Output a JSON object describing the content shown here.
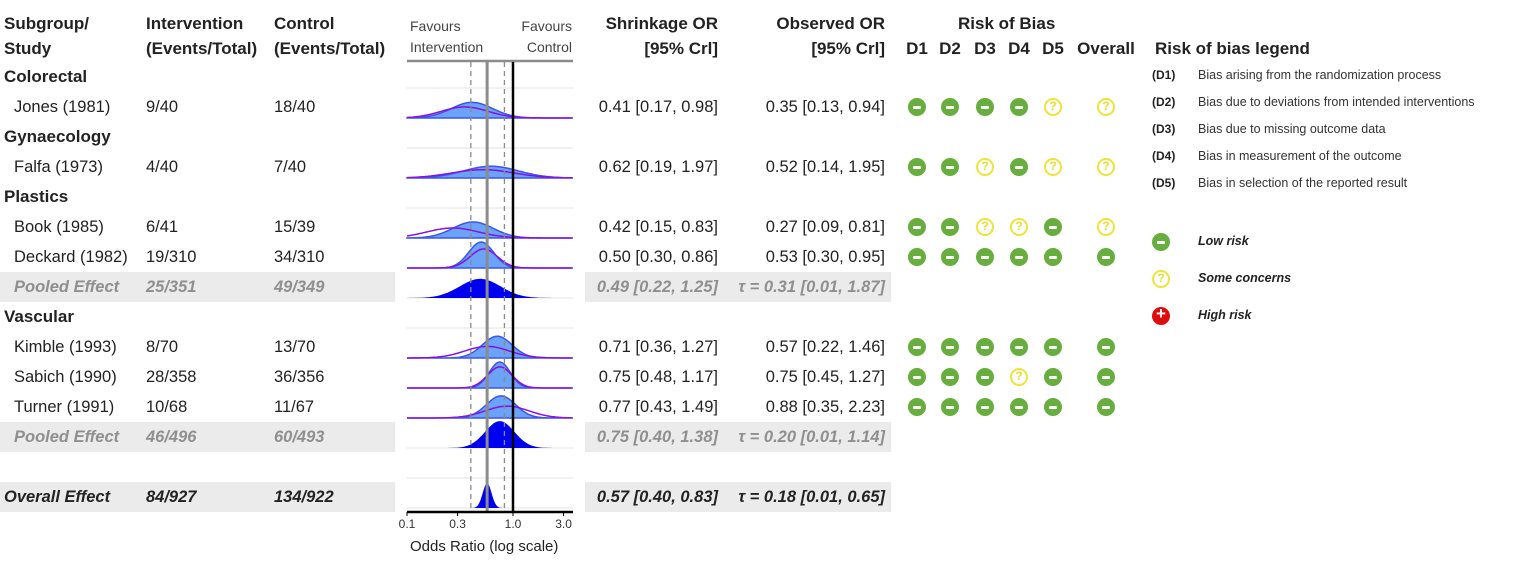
{
  "headers": {
    "study_line1": "Subgroup/",
    "study_line2": "Study",
    "intervention_line1": "Intervention",
    "intervention_line2": "(Events/Total)",
    "control_line1": "Control",
    "control_line2": "(Events/Total)",
    "favours_left_line1": "Favours",
    "favours_left_line2": "Intervention",
    "favours_right_line1": "Favours",
    "favours_right_line2": "Control",
    "shrinkage_line1": "Shrinkage OR",
    "shrinkage_line2": "[95% Crl]",
    "observed_line1": "Observed OR",
    "observed_line2": "[95% Crl]",
    "rob_title": "Risk of Bias",
    "rob_domains": [
      "D1",
      "D2",
      "D3",
      "D4",
      "D5",
      "Overall"
    ]
  },
  "rows": [
    {
      "type": "group",
      "label": "Colorectal"
    },
    {
      "type": "study",
      "label": "Jones (1981)",
      "intervention": "9/40",
      "control": "18/40",
      "shrinkage": "0.41 [0.17, 0.98]",
      "observed": "0.35 [0.13, 0.94]",
      "rob": [
        "low",
        "low",
        "low",
        "low",
        "some",
        "some"
      ],
      "dist": {
        "shrink_or": 0.41,
        "shrink_lo": 0.17,
        "shrink_hi": 0.98,
        "obs_or": 0.35,
        "obs_lo": 0.13,
        "obs_hi": 0.94
      }
    },
    {
      "type": "group",
      "label": "Gynaecology"
    },
    {
      "type": "study",
      "label": "Falfa (1973)",
      "intervention": "4/40",
      "control": "7/40",
      "shrinkage": "0.62 [0.19, 1.97]",
      "observed": "0.52 [0.14, 1.95]",
      "rob": [
        "low",
        "low",
        "some",
        "low",
        "some",
        "some"
      ],
      "dist": {
        "shrink_or": 0.62,
        "shrink_lo": 0.19,
        "shrink_hi": 1.97,
        "obs_or": 0.52,
        "obs_lo": 0.14,
        "obs_hi": 1.95
      }
    },
    {
      "type": "group",
      "label": "Plastics"
    },
    {
      "type": "study",
      "label": "Book (1985)",
      "intervention": "6/41",
      "control": "15/39",
      "shrinkage": "0.42 [0.15, 0.83]",
      "observed": "0.27 [0.09, 0.81]",
      "rob": [
        "low",
        "low",
        "some",
        "some",
        "low",
        "some"
      ],
      "dist": {
        "shrink_or": 0.42,
        "shrink_lo": 0.15,
        "shrink_hi": 0.83,
        "obs_or": 0.27,
        "obs_lo": 0.09,
        "obs_hi": 0.81
      }
    },
    {
      "type": "study",
      "label": "Deckard (1982)",
      "intervention": "19/310",
      "control": "34/310",
      "shrinkage": "0.50 [0.30, 0.86]",
      "observed": "0.53 [0.30, 0.95]",
      "rob": [
        "low",
        "low",
        "low",
        "low",
        "low",
        "low"
      ],
      "dist": {
        "shrink_or": 0.5,
        "shrink_lo": 0.3,
        "shrink_hi": 0.86,
        "obs_or": 0.53,
        "obs_lo": 0.3,
        "obs_hi": 0.95
      }
    },
    {
      "type": "pooled",
      "label": "Pooled Effect",
      "intervention": "25/351",
      "control": "49/349",
      "shrinkage": "0.49 [0.22, 1.25]",
      "observed": "τ = 0.31 [0.01, 1.87]",
      "dist": {
        "shrink_or": 0.49,
        "shrink_lo": 0.22,
        "shrink_hi": 1.25
      }
    },
    {
      "type": "group",
      "label": "Vascular"
    },
    {
      "type": "study",
      "label": "Kimble (1993)",
      "intervention": "8/70",
      "control": "13/70",
      "shrinkage": "0.71 [0.36, 1.27]",
      "observed": "0.57 [0.22, 1.46]",
      "rob": [
        "low",
        "low",
        "low",
        "low",
        "low",
        "low"
      ],
      "dist": {
        "shrink_or": 0.71,
        "shrink_lo": 0.36,
        "shrink_hi": 1.27,
        "obs_or": 0.57,
        "obs_lo": 0.22,
        "obs_hi": 1.46
      }
    },
    {
      "type": "study",
      "label": "Sabich (1990)",
      "intervention": "28/358",
      "control": "36/356",
      "shrinkage": "0.75 [0.48, 1.17]",
      "observed": "0.75 [0.45, 1.27]",
      "rob": [
        "low",
        "low",
        "low",
        "some",
        "low",
        "low"
      ],
      "dist": {
        "shrink_or": 0.75,
        "shrink_lo": 0.48,
        "shrink_hi": 1.17,
        "obs_or": 0.75,
        "obs_lo": 0.45,
        "obs_hi": 1.27
      }
    },
    {
      "type": "study",
      "label": "Turner (1991)",
      "intervention": "10/68",
      "control": "11/67",
      "shrinkage": "0.77 [0.43, 1.49]",
      "observed": "0.88 [0.35, 2.23]",
      "rob": [
        "low",
        "low",
        "low",
        "low",
        "low",
        "low"
      ],
      "dist": {
        "shrink_or": 0.77,
        "shrink_lo": 0.43,
        "shrink_hi": 1.49,
        "obs_or": 0.88,
        "obs_lo": 0.35,
        "obs_hi": 2.23
      }
    },
    {
      "type": "pooled",
      "label": "Pooled Effect",
      "intervention": "46/496",
      "control": "60/493",
      "shrinkage": "0.75 [0.40, 1.38]",
      "observed": "τ = 0.20 [0.01, 1.14]",
      "dist": {
        "shrink_or": 0.75,
        "shrink_lo": 0.4,
        "shrink_hi": 1.38
      }
    },
    {
      "type": "blank"
    },
    {
      "type": "overall",
      "label": "Overall Effect",
      "intervention": "84/927",
      "control": "134/922",
      "shrinkage": "0.57 [0.40, 0.83]",
      "observed": "τ = 0.18 [0.01, 0.65]",
      "dist": {
        "shrink_or": 0.57,
        "shrink_lo": 0.4,
        "shrink_hi": 0.83
      }
    }
  ],
  "legend": {
    "title": "Risk of bias legend",
    "domains": [
      {
        "key": "(D1)",
        "text": "Bias arising from the randomization process"
      },
      {
        "key": "(D2)",
        "text": "Bias due to deviations from intended interventions"
      },
      {
        "key": "(D3)",
        "text": "Bias due to missing outcome data"
      },
      {
        "key": "(D4)",
        "text": "Bias in measurement of the outcome"
      },
      {
        "key": "(D5)",
        "text": "Bias in selection of the reported result"
      }
    ],
    "levels": [
      {
        "level": "low",
        "label": "Low risk"
      },
      {
        "level": "some",
        "label": "Some concerns"
      },
      {
        "level": "high",
        "label": "High risk"
      }
    ]
  },
  "colors": {
    "low": "#67ae3e",
    "some": "#ede43a",
    "high": "#e00c0c",
    "shrinkage_fill": "#6aa3f7",
    "shrinkage_line": "#3a55f0",
    "observed_line": "#8a10e0",
    "pooled_fill": "#0000f0"
  },
  "chart_data": {
    "type": "forest-ridgeline",
    "xlabel": "Odds Ratio (log scale)",
    "xscale": "log",
    "xlim": [
      0.1,
      3.0
    ],
    "xticks": [
      "0.1",
      "0.3",
      "1.0",
      "3.0"
    ],
    "reference_line": 1.0,
    "overall_estimate": 0.57,
    "overall_ci": [
      0.4,
      0.83
    ],
    "series": [
      {
        "name": "Shrinkage OR",
        "style": "filled density"
      },
      {
        "name": "Observed OR",
        "style": "density outline"
      },
      {
        "name": "Pooled / Overall",
        "style": "solid filled density"
      }
    ]
  }
}
